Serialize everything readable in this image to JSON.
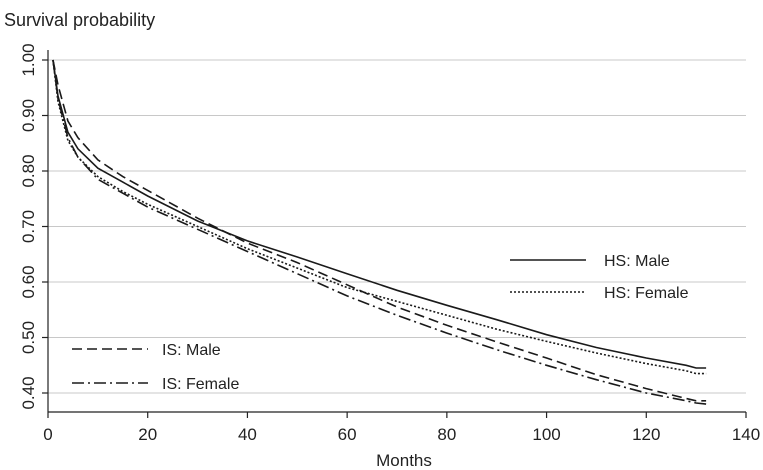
{
  "chart_data": {
    "type": "line",
    "title": "Survival probability",
    "xlabel": "Months",
    "ylabel": "",
    "xlim": [
      0,
      140
    ],
    "ylim": [
      0.38,
      1.0
    ],
    "xticks": [
      0,
      20,
      40,
      60,
      80,
      100,
      120,
      140
    ],
    "xtick_labels": [
      "0",
      "20",
      "40",
      "60",
      "80",
      "100",
      "120",
      "140"
    ],
    "yticks": [
      0.4,
      0.5,
      0.6,
      0.7,
      0.8,
      0.9,
      1.0
    ],
    "ytick_labels": [
      "0.40",
      "0.50",
      "0.60",
      "0.70",
      "0.80",
      "0.90",
      "1.00"
    ],
    "grid": true,
    "x": [
      1,
      2,
      4,
      6,
      10,
      15,
      20,
      30,
      40,
      50,
      60,
      70,
      80,
      90,
      100,
      110,
      120,
      128,
      130,
      132
    ],
    "series": [
      {
        "name": "HS: Male",
        "style": "solid",
        "values": [
          1.0,
          0.935,
          0.87,
          0.84,
          0.805,
          0.78,
          0.755,
          0.71,
          0.674,
          0.645,
          0.615,
          0.585,
          0.558,
          0.532,
          0.505,
          0.482,
          0.463,
          0.45,
          0.445,
          0.445
        ]
      },
      {
        "name": "HS: Female",
        "style": "dotted",
        "values": [
          1.0,
          0.925,
          0.855,
          0.825,
          0.79,
          0.763,
          0.74,
          0.7,
          0.66,
          0.625,
          0.59,
          0.565,
          0.54,
          0.515,
          0.493,
          0.472,
          0.453,
          0.44,
          0.435,
          0.435
        ]
      },
      {
        "name": "IS: Male",
        "style": "dashed",
        "values": [
          1.0,
          0.955,
          0.89,
          0.86,
          0.82,
          0.79,
          0.765,
          0.715,
          0.67,
          0.635,
          0.595,
          0.555,
          0.522,
          0.492,
          0.463,
          0.433,
          0.408,
          0.39,
          0.386,
          0.386
        ]
      },
      {
        "name": "IS: Female",
        "style": "dash-dot",
        "values": [
          1.0,
          0.93,
          0.86,
          0.825,
          0.785,
          0.76,
          0.735,
          0.695,
          0.655,
          0.615,
          0.575,
          0.54,
          0.508,
          0.478,
          0.45,
          0.424,
          0.4,
          0.386,
          0.382,
          0.38
        ]
      }
    ],
    "legends": [
      {
        "placement": "right",
        "items": [
          "HS: Male",
          "HS: Female"
        ]
      },
      {
        "placement": "bottom-left",
        "items": [
          "IS: Male",
          "IS: Female"
        ]
      }
    ]
  }
}
